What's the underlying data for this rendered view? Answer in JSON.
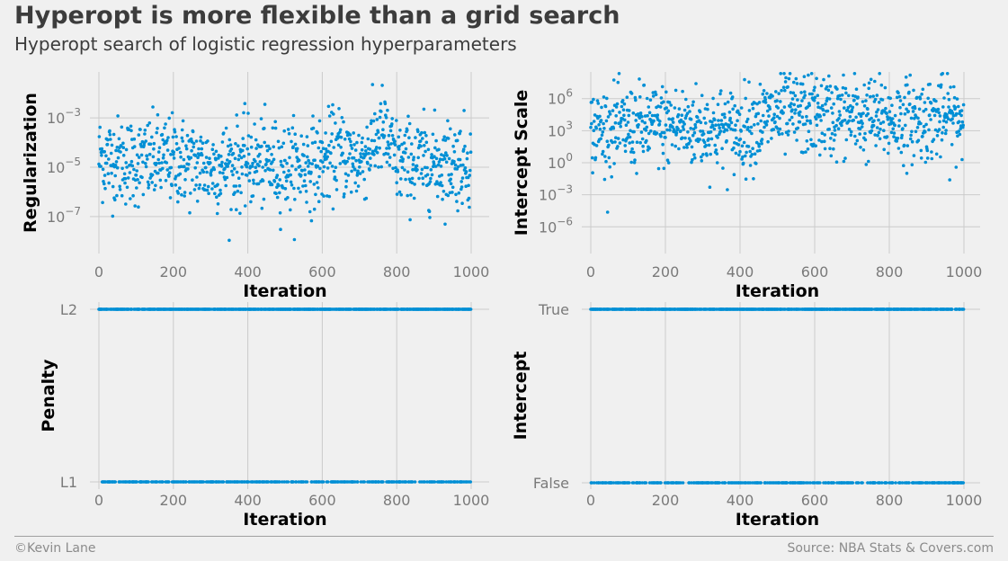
{
  "title": "Hyperopt is more flexible than a grid search",
  "subtitle": "Hyperopt search of logistic regression hyperparameters",
  "footer": {
    "credit": "©Kevin Lane",
    "source": "Source: NBA Stats & Covers.com"
  },
  "colors": {
    "background": "#f0f0f0",
    "grid": "#cbcbcb",
    "points": "#008fd5",
    "text": "#3c3c3c"
  },
  "chart_data": [
    {
      "type": "scatter",
      "xlabel": "Iteration",
      "ylabel": "Regularization",
      "yscale": "log",
      "xlim": [
        0,
        1000
      ],
      "xticks": [
        0,
        200,
        400,
        600,
        800,
        1000
      ],
      "ylim_exp": [
        -8.5,
        -1.5
      ],
      "yticks": [
        {
          "exp": -3,
          "label": "10",
          "sup": "−3"
        },
        {
          "exp": -5,
          "label": "10",
          "sup": "−5"
        },
        {
          "exp": -7,
          "label": "10",
          "sup": "−7"
        }
      ],
      "grid": true,
      "n_points": 1000,
      "series": [
        {
          "trend": [
            {
              "x": 0,
              "y_exp": -4.6
            },
            {
              "x": 100,
              "y_exp": -4.8
            },
            {
              "x": 200,
              "y_exp": -4.7
            },
            {
              "x": 300,
              "y_exp": -5.0
            },
            {
              "x": 400,
              "y_exp": -4.8
            },
            {
              "x": 500,
              "y_exp": -5.0
            },
            {
              "x": 600,
              "y_exp": -4.8
            },
            {
              "x": 640,
              "y_exp": -4.3
            },
            {
              "x": 700,
              "y_exp": -4.8
            },
            {
              "x": 760,
              "y_exp": -3.5
            },
            {
              "x": 800,
              "y_exp": -4.8
            },
            {
              "x": 1000,
              "y_exp": -4.8
            }
          ]
        }
      ],
      "spread_exp": 1.6
    },
    {
      "type": "scatter",
      "xlabel": "Iteration",
      "ylabel": "Intercept Scale",
      "yscale": "log",
      "xlim": [
        0,
        1000
      ],
      "xticks": [
        0,
        200,
        400,
        600,
        800,
        1000
      ],
      "ylim_exp": [
        -8.5,
        8.5
      ],
      "yticks": [
        {
          "exp": 6,
          "label": "10",
          "sup": "6"
        },
        {
          "exp": 3,
          "label": "10",
          "sup": "3"
        },
        {
          "exp": 0,
          "label": "10",
          "sup": "0"
        },
        {
          "exp": -3,
          "label": "10",
          "sup": "−3"
        },
        {
          "exp": -6,
          "label": "10",
          "sup": "−6"
        }
      ],
      "grid": true,
      "n_points": 1000,
      "series": [
        {
          "trend": [
            {
              "x": 0,
              "y_exp": 3.0
            },
            {
              "x": 200,
              "y_exp": 3.5
            },
            {
              "x": 400,
              "y_exp": 3.0
            },
            {
              "x": 500,
              "y_exp": 4.5
            },
            {
              "x": 600,
              "y_exp": 4.5
            },
            {
              "x": 800,
              "y_exp": 4.0
            },
            {
              "x": 1000,
              "y_exp": 4.2
            }
          ]
        }
      ],
      "spread_exp": 3.5
    },
    {
      "type": "scatter",
      "xlabel": "Iteration",
      "ylabel": "Penalty",
      "xlim": [
        0,
        1000
      ],
      "xticks": [
        0,
        200,
        400,
        600,
        800,
        1000
      ],
      "categories": [
        "L1",
        "L2"
      ],
      "grid": true,
      "n_points": 1000,
      "category_counts": {
        "L1": 330,
        "L2": 670
      }
    },
    {
      "type": "scatter",
      "xlabel": "Iteration",
      "ylabel": "Intercept",
      "xlim": [
        0,
        1000
      ],
      "xticks": [
        0,
        200,
        400,
        600,
        800,
        1000
      ],
      "categories": [
        "False",
        "True"
      ],
      "grid": true,
      "n_points": 1000,
      "category_counts": {
        "False": 320,
        "True": 680
      }
    }
  ]
}
